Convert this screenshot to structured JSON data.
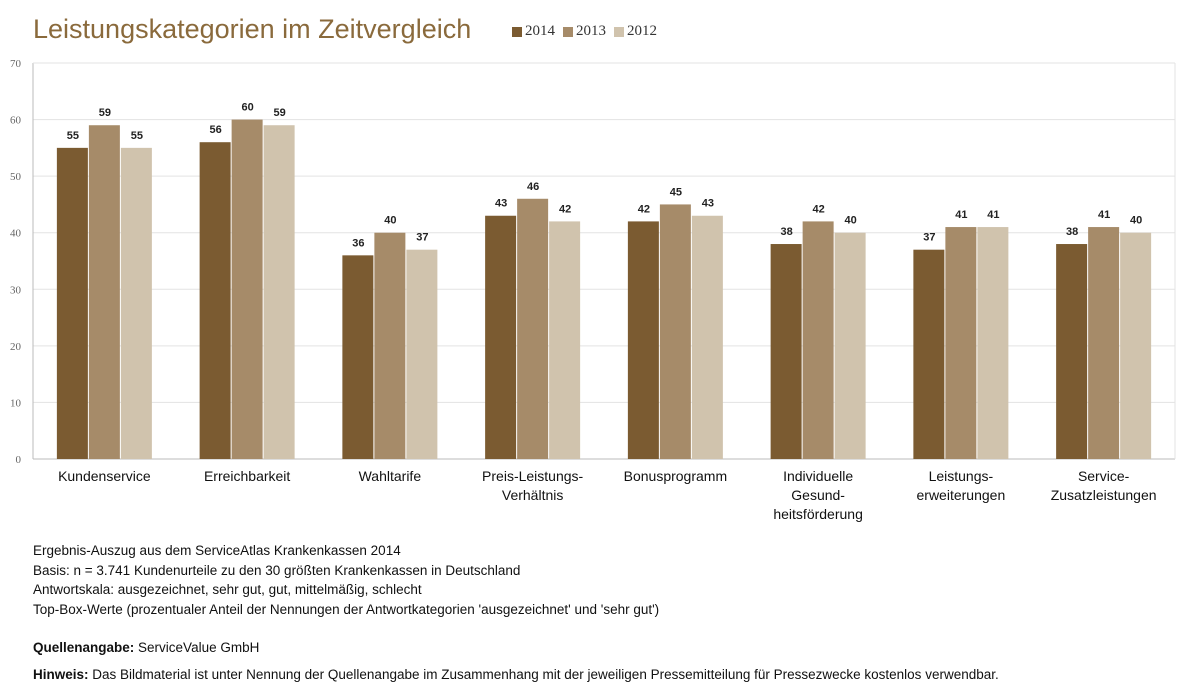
{
  "chart_data": {
    "type": "bar",
    "title": "Leistungskategorien im Zeitvergleich",
    "categories": [
      [
        "Kundenservice"
      ],
      [
        "Erreichbarkeit"
      ],
      [
        "Wahltarife"
      ],
      [
        "Preis-Leistungs-",
        "Verhältnis"
      ],
      [
        "Bonusprogramm"
      ],
      [
        "Individuelle",
        "Gesund-",
        "heitsförderung"
      ],
      [
        "Leistungs-",
        "erweiterungen"
      ],
      [
        "Service-",
        "Zusatzleistungen"
      ]
    ],
    "series": [
      {
        "name": "2014",
        "color": "#7b5b31",
        "values": [
          55,
          56,
          36,
          43,
          42,
          38,
          37,
          38
        ]
      },
      {
        "name": "2013",
        "color": "#a68b69",
        "values": [
          59,
          60,
          40,
          46,
          45,
          42,
          41,
          41
        ]
      },
      {
        "name": "2012",
        "color": "#d0c3ad",
        "values": [
          55,
          59,
          37,
          42,
          43,
          40,
          41,
          40
        ]
      }
    ],
    "ylim": [
      0,
      70
    ],
    "yticks": [
      0,
      10,
      20,
      30,
      40,
      50,
      60,
      70
    ],
    "grid": true,
    "legend": "top"
  },
  "notes": [
    "Ergebnis-Auszug aus dem ServiceAtlas Krankenkassen 2014",
    "Basis: n = 3.741 Kundenurteile zu den 30 größten Krankenkassen in Deutschland",
    "Antwortskala: ausgezeichnet, sehr gut, gut, mittelmäßig, schlecht",
    "Top-Box-Werte (prozentualer Anteil der Nennungen der Antwortkategorien 'ausgezeichnet' und 'sehr gut')"
  ],
  "source": {
    "label": "Quellenangabe:",
    "text": "ServiceValue GmbH"
  },
  "hint": {
    "label": "Hinweis:",
    "text": "Das Bildmaterial ist unter Nennung der Quellenangabe im Zusammenhang mit der jeweiligen Pressemitteilung für Pressezwecke kostenlos verwendbar."
  }
}
